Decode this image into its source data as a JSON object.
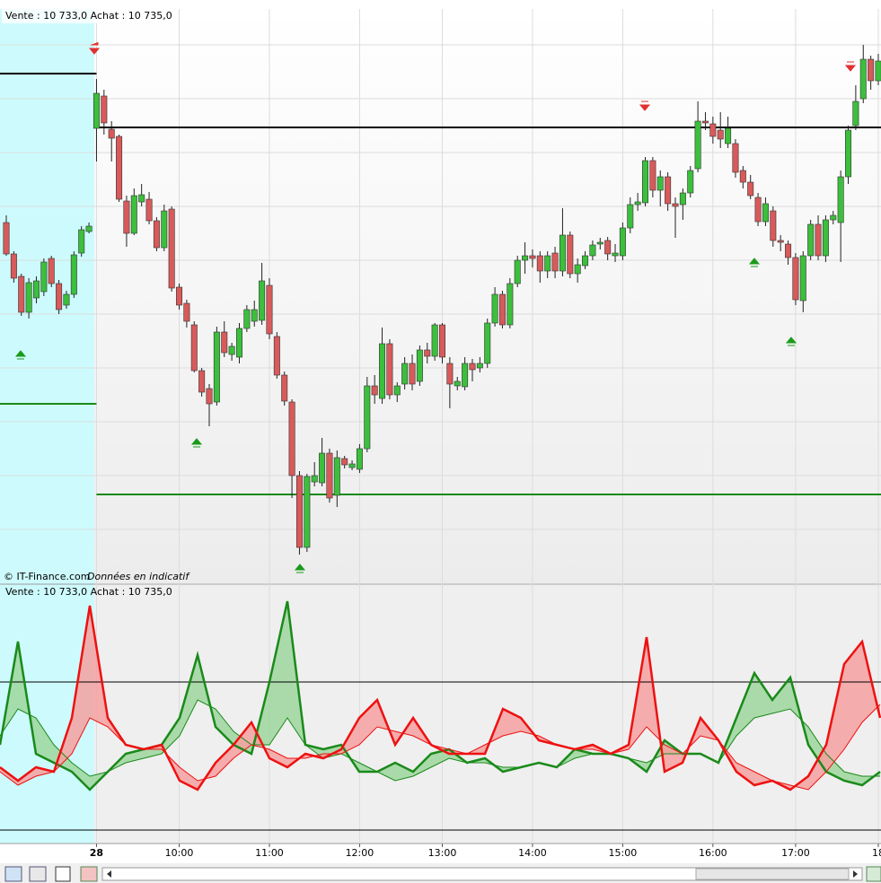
{
  "chart_data": [
    {
      "type": "candlestick",
      "quote": "Vente : 10 733,0 Achat : 10 735,0",
      "source": "© IT-Finance.com",
      "disclaimer": "Données en indicatif",
      "up_color": "#3cbf3c",
      "down_color": "#d85a5a",
      "ylim": [
        10,
        650
      ],
      "categories": [
        null,
        null,
        null,
        null,
        null,
        null,
        null,
        null,
        null,
        null,
        null,
        null,
        "28",
        null,
        null,
        null,
        null,
        null,
        null,
        null,
        null,
        null,
        null,
        "10:00",
        null,
        null,
        null,
        null,
        null,
        null,
        null,
        null,
        null,
        null,
        null,
        "11:00",
        null,
        null,
        null,
        null,
        null,
        null,
        null,
        null,
        null,
        null,
        null,
        "12:00",
        null,
        null,
        null,
        null,
        null,
        null,
        null,
        null,
        null,
        null,
        "13:00",
        null,
        null,
        null,
        null,
        null,
        null,
        null,
        null,
        null,
        null,
        null,
        "14:00",
        null,
        null,
        null,
        null,
        null,
        null,
        null,
        null,
        null,
        null,
        null,
        "15:00",
        null,
        null,
        null,
        null,
        null,
        null,
        null,
        null,
        null,
        null,
        null,
        "16:00",
        null,
        null,
        null,
        null,
        null,
        null,
        null,
        null,
        null,
        null,
        "17:00",
        null,
        null,
        null,
        null,
        null,
        null,
        null,
        null,
        null,
        null,
        "18"
      ],
      "ohlc": [
        [
          412,
          420,
          375,
          377
        ],
        [
          377,
          380,
          345,
          350
        ],
        [
          352,
          355,
          308,
          312
        ],
        [
          312,
          350,
          305,
          345
        ],
        [
          328,
          352,
          322,
          347
        ],
        [
          335,
          372,
          330,
          368
        ],
        [
          372,
          375,
          340,
          344
        ],
        [
          344,
          348,
          310,
          315
        ],
        [
          320,
          336,
          316,
          332
        ],
        [
          332,
          380,
          328,
          376
        ],
        [
          378,
          408,
          374,
          404
        ],
        [
          402,
          412,
          400,
          408
        ],
        [
          517,
          572,
          480,
          556
        ],
        [
          553,
          560,
          510,
          523
        ],
        [
          516,
          525,
          480,
          506
        ],
        [
          508,
          510,
          435,
          438
        ],
        [
          436,
          442,
          385,
          400
        ],
        [
          400,
          450,
          398,
          442
        ],
        [
          435,
          455,
          430,
          443
        ],
        [
          438,
          446,
          410,
          414
        ],
        [
          414,
          418,
          380,
          384
        ],
        [
          384,
          432,
          380,
          425
        ],
        [
          427,
          430,
          335,
          339
        ],
        [
          340,
          344,
          315,
          320
        ],
        [
          322,
          326,
          295,
          302
        ],
        [
          298,
          302,
          245,
          247
        ],
        [
          247,
          250,
          218,
          223
        ],
        [
          227,
          232,
          185,
          210
        ],
        [
          212,
          296,
          208,
          290
        ],
        [
          290,
          302,
          262,
          267
        ],
        [
          265,
          278,
          258,
          274
        ],
        [
          262,
          300,
          255,
          294
        ],
        [
          294,
          320,
          290,
          315
        ],
        [
          302,
          325,
          296,
          315
        ],
        [
          303,
          367,
          298,
          347
        ],
        [
          342,
          350,
          282,
          288
        ],
        [
          285,
          290,
          238,
          242
        ],
        [
          242,
          246,
          208,
          213
        ],
        [
          212,
          215,
          105,
          130
        ],
        [
          130,
          135,
          42,
          50
        ],
        [
          50,
          132,
          45,
          129
        ],
        [
          123,
          145,
          118,
          130
        ],
        [
          122,
          172,
          118,
          155
        ],
        [
          155,
          160,
          100,
          105
        ],
        [
          108,
          158,
          95,
          150
        ],
        [
          149,
          152,
          138,
          142
        ],
        [
          139,
          147,
          136,
          143
        ],
        [
          137,
          165,
          133,
          160
        ],
        [
          160,
          240,
          156,
          230
        ],
        [
          230,
          242,
          210,
          220
        ],
        [
          216,
          295,
          210,
          277
        ],
        [
          277,
          282,
          215,
          220
        ],
        [
          220,
          234,
          212,
          230
        ],
        [
          232,
          262,
          226,
          255
        ],
        [
          255,
          265,
          225,
          232
        ],
        [
          235,
          275,
          230,
          270
        ],
        [
          270,
          278,
          255,
          263
        ],
        [
          263,
          300,
          258,
          298
        ],
        [
          298,
          300,
          255,
          262
        ],
        [
          255,
          262,
          205,
          232
        ],
        [
          230,
          240,
          225,
          235
        ],
        [
          229,
          262,
          225,
          255
        ],
        [
          255,
          260,
          235,
          248
        ],
        [
          250,
          262,
          245,
          255
        ],
        [
          255,
          305,
          250,
          300
        ],
        [
          300,
          340,
          296,
          332
        ],
        [
          332,
          336,
          294,
          298
        ],
        [
          298,
          350,
          294,
          344
        ],
        [
          344,
          375,
          340,
          370
        ],
        [
          370,
          390,
          355,
          375
        ],
        [
          375,
          382,
          362,
          372
        ],
        [
          375,
          380,
          345,
          358
        ],
        [
          358,
          380,
          350,
          375
        ],
        [
          378,
          385,
          350,
          358
        ],
        [
          358,
          428,
          352,
          398
        ],
        [
          398,
          402,
          350,
          355
        ],
        [
          355,
          372,
          345,
          365
        ],
        [
          364,
          380,
          360,
          375
        ],
        [
          375,
          392,
          370,
          387
        ],
        [
          388,
          395,
          382,
          390
        ],
        [
          392,
          396,
          370,
          377
        ],
        [
          375,
          388,
          368,
          378
        ],
        [
          375,
          412,
          370,
          406
        ],
        [
          406,
          440,
          400,
          432
        ],
        [
          432,
          445,
          425,
          435
        ],
        [
          434,
          485,
          430,
          481
        ],
        [
          481,
          485,
          440,
          448
        ],
        [
          448,
          470,
          430,
          463
        ],
        [
          463,
          468,
          425,
          433
        ],
        [
          433,
          440,
          395,
          430
        ],
        [
          432,
          450,
          415,
          445
        ],
        [
          445,
          475,
          440,
          470
        ],
        [
          472,
          547,
          468,
          525
        ],
        [
          525,
          535,
          515,
          523
        ],
        [
          522,
          530,
          500,
          508
        ],
        [
          515,
          535,
          495,
          505
        ],
        [
          500,
          530,
          495,
          517
        ],
        [
          500,
          505,
          462,
          468
        ],
        [
          470,
          475,
          450,
          457
        ],
        [
          457,
          465,
          438,
          442
        ],
        [
          440,
          445,
          408,
          413
        ],
        [
          413,
          440,
          408,
          433
        ],
        [
          425,
          430,
          385,
          392
        ],
        [
          392,
          398,
          380,
          390
        ],
        [
          388,
          392,
          365,
          373
        ],
        [
          373,
          378,
          320,
          326
        ],
        [
          325,
          380,
          312,
          375
        ],
        [
          375,
          415,
          370,
          410
        ],
        [
          410,
          420,
          370,
          375
        ],
        [
          375,
          420,
          368,
          415
        ],
        [
          415,
          425,
          410,
          420
        ],
        [
          412,
          470,
          368,
          463
        ],
        [
          463,
          520,
          455,
          515
        ],
        [
          520,
          565,
          515,
          547
        ],
        [
          550,
          610,
          545,
          594
        ],
        [
          594,
          598,
          560,
          570
        ],
        [
          570,
          600,
          565,
          592
        ]
      ],
      "reference_lines": [
        {
          "value": 578,
          "color": "#000000",
          "session": "previous"
        },
        {
          "value": 518,
          "color": "#000000",
          "session": "current"
        },
        {
          "value": 210,
          "color": "#1a8a1a",
          "session": "previous"
        },
        {
          "value": 109,
          "color": "#1a8a1a",
          "session": "current"
        }
      ]
    },
    {
      "type": "line",
      "quote": "Vente : 10 733,0 Achat : 10 735,0",
      "ylim": [
        0,
        280
      ],
      "levels": [
        180,
        15
      ],
      "series": [
        {
          "color": "#1a8a1a",
          "width": 2.5,
          "values": [
            110,
            225,
            100,
            90,
            80,
            60,
            80,
            100,
            105,
            110,
            140,
            210,
            130,
            110,
            100,
            180,
            270,
            110,
            105,
            110,
            80,
            80,
            90,
            80,
            100,
            105,
            90,
            95,
            80,
            85,
            90,
            85,
            105,
            100,
            100,
            95,
            80,
            115,
            100,
            100,
            90,
            140,
            190,
            160,
            185,
            110,
            80,
            70,
            65,
            80
          ]
        },
        {
          "color": "#1a8a1a",
          "width": 1,
          "values": [
            120,
            150,
            140,
            110,
            90,
            75,
            80,
            90,
            95,
            100,
            120,
            160,
            150,
            125,
            110,
            110,
            140,
            110,
            95,
            100,
            90,
            80,
            70,
            75,
            85,
            95,
            90,
            90,
            85,
            85,
            90,
            85,
            95,
            100,
            100,
            95,
            90,
            100,
            100,
            100,
            90,
            120,
            140,
            145,
            150,
            130,
            100,
            80,
            75,
            75
          ]
        },
        {
          "color": "#ee1111",
          "width": 2.5,
          "values": [
            85,
            70,
            85,
            80,
            140,
            265,
            140,
            110,
            105,
            110,
            70,
            60,
            90,
            110,
            135,
            95,
            85,
            100,
            95,
            105,
            140,
            160,
            110,
            140,
            110,
            100,
            100,
            100,
            150,
            140,
            115,
            110,
            105,
            110,
            100,
            110,
            230,
            80,
            90,
            140,
            115,
            80,
            65,
            70,
            60,
            75,
            110,
            200,
            225,
            140
          ]
        },
        {
          "color": "#ee1111",
          "width": 1,
          "values": [
            80,
            65,
            75,
            80,
            100,
            140,
            130,
            110,
            105,
            105,
            85,
            70,
            75,
            95,
            110,
            105,
            95,
            95,
            100,
            100,
            110,
            130,
            125,
            120,
            110,
            105,
            100,
            110,
            120,
            125,
            120,
            110,
            105,
            105,
            100,
            105,
            130,
            110,
            100,
            120,
            115,
            90,
            80,
            70,
            65,
            60,
            80,
            105,
            135,
            155
          ]
        }
      ],
      "fills": [
        {
          "between": [
            0,
            1
          ],
          "color": "#9ed69e"
        },
        {
          "between": [
            2,
            3
          ],
          "color": "#f4a0a0"
        }
      ]
    }
  ]
}
